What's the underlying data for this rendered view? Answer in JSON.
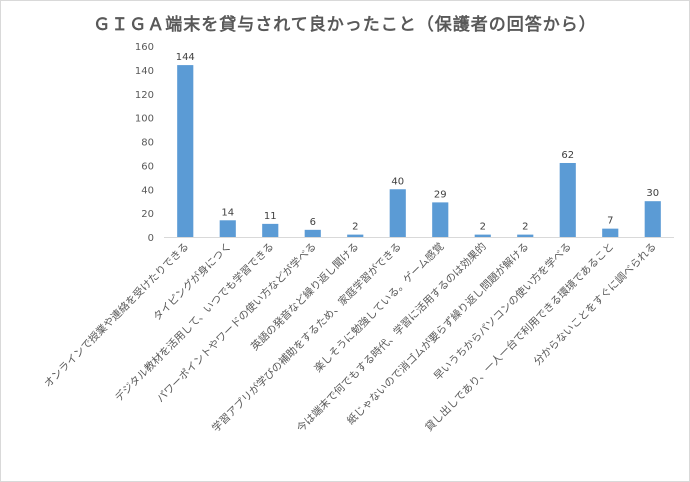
{
  "chart_data": {
    "type": "bar",
    "title": "ＧＩＧＡ端末を貸与されて良かったこと（保護者の回答から）",
    "xlabel": "",
    "ylabel": "",
    "ylim": [
      0,
      160
    ],
    "yticks": [
      0,
      20,
      40,
      60,
      80,
      100,
      120,
      140,
      160
    ],
    "grid": false,
    "legend": "none",
    "bar_color": "#5b9bd5",
    "categories": [
      "オンラインで授業や連絡を受けたりできる",
      "タイピングが身につく",
      "デジタル教材を活用して、いつでも学習できる",
      "パワーポイントやワードの使い方などが学べる",
      "英語の発音など繰り返し聞ける",
      "学習アプリが学びの補助をするため、家庭学習ができる",
      "楽しそうに勉強している。ゲーム感覚",
      "今は端末で何でもする時代、学習に活用するのは効果的",
      "紙じゃないので消ゴムが要らず繰り返し問題が解ける",
      "早いうちからパソコンの使い方を学べる",
      "貸し出しであり、一人一台で利用できる環境であること",
      "分からないことをすぐに調べられる"
    ],
    "values": [
      144,
      14,
      11,
      6,
      2,
      40,
      29,
      2,
      2,
      62,
      7,
      30
    ],
    "data_labels": [
      "144",
      "14",
      "11",
      "6",
      "2",
      "40",
      "29",
      "2",
      "2",
      "62",
      "7",
      "30"
    ]
  }
}
